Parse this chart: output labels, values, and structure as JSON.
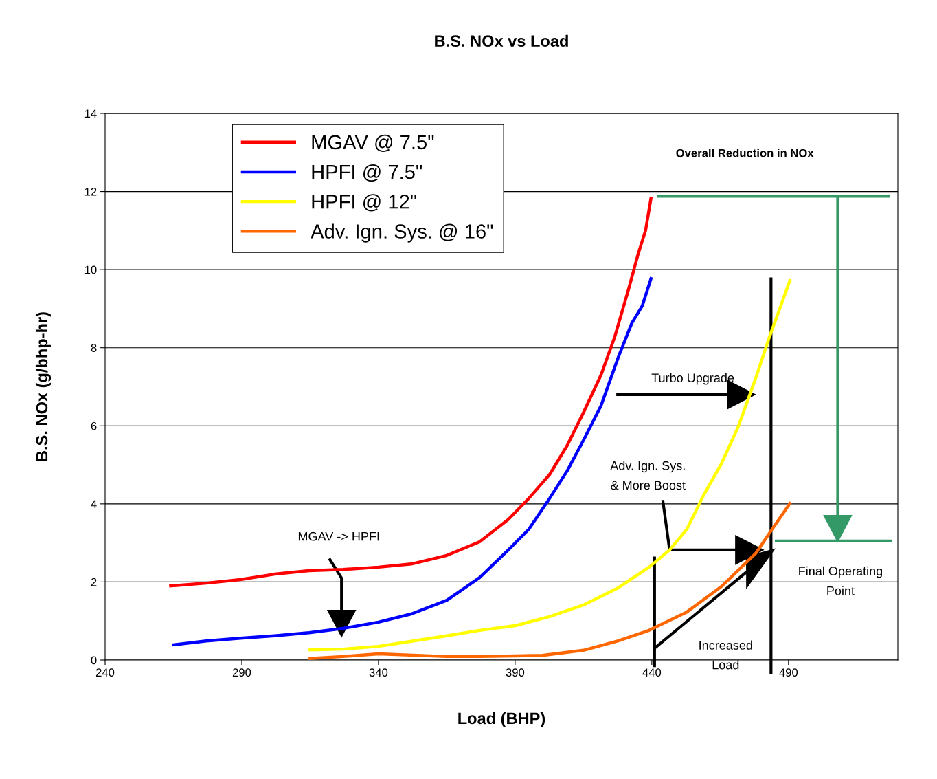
{
  "chart_data": {
    "type": "line",
    "title": "B.S. NOx vs Load",
    "xlabel": "Load (BHP)",
    "ylabel": "B.S. NOx (g/bhp-hr)",
    "xlim": [
      240,
      530
    ],
    "xticks": [
      240,
      290,
      340,
      390,
      440,
      490
    ],
    "ylim": [
      0,
      14
    ],
    "yticks": [
      0,
      2,
      4,
      6,
      8,
      10,
      12,
      14
    ],
    "grid": "y",
    "legend": "top left",
    "marker": "none",
    "line_style": "solid",
    "series": [
      {
        "name": "MGAV @ 7.5\"",
        "color": "#ff0000",
        "x": [
          264,
          277,
          289.5,
          302,
          314.6,
          327,
          340,
          352,
          365,
          377,
          387.5,
          395,
          402.6,
          409,
          415,
          421.4,
          426.4,
          431.5,
          435,
          437.7,
          439.7
        ],
        "values": [
          1.9,
          1.97,
          2.06,
          2.2,
          2.29,
          2.32,
          2.38,
          2.46,
          2.68,
          3.03,
          3.6,
          4.14,
          4.75,
          5.49,
          6.34,
          7.3,
          8.27,
          9.5,
          10.4,
          11.0,
          11.83
        ]
      },
      {
        "name": "HPFI @ 7.5\"",
        "color": "#0000ff",
        "x": [
          265,
          277,
          289.5,
          302,
          314.6,
          327,
          340,
          352,
          365,
          377,
          387.5,
          395,
          402.6,
          409,
          415,
          421.4,
          427.7,
          432.7,
          436.5,
          439.7
        ],
        "values": [
          0.39,
          0.49,
          0.56,
          0.62,
          0.7,
          0.81,
          0.97,
          1.18,
          1.53,
          2.11,
          2.82,
          3.35,
          4.14,
          4.84,
          5.63,
          6.51,
          7.75,
          8.63,
          9.07,
          9.77
        ]
      },
      {
        "name": "HPFI @ 12\"",
        "color": "#ffff00",
        "x": [
          315,
          327,
          340,
          352,
          365,
          377,
          390,
          402.6,
          415,
          427.7,
          439,
          446.5,
          452.8,
          459,
          465.4,
          471.7,
          478,
          483,
          486.7,
          490.5
        ],
        "values": [
          0.26,
          0.28,
          0.35,
          0.48,
          0.62,
          0.76,
          0.88,
          1.11,
          1.41,
          1.85,
          2.38,
          2.82,
          3.35,
          4.23,
          5.02,
          5.99,
          7.22,
          8.27,
          8.98,
          9.72
        ]
      },
      {
        "name": "Adv. Ign. Sys. @ 16\"",
        "color": "#ff6600",
        "x": [
          315,
          327,
          340,
          365,
          377,
          400,
          415,
          427.7,
          439,
          452.8,
          465.4,
          478,
          484,
          490.5
        ],
        "values": [
          0.04,
          0.09,
          0.16,
          0.09,
          0.09,
          0.12,
          0.25,
          0.49,
          0.76,
          1.23,
          1.88,
          2.73,
          3.35,
          4.01
        ]
      }
    ],
    "ref_lines": [
      {
        "axis": "x",
        "value": 441,
        "color": "#000000"
      },
      {
        "axis": "x",
        "value": 483.6,
        "color": "#000000"
      }
    ],
    "annotations": [
      "Overall Reduction in NOx",
      "Turbo Upgrade",
      {
        "text": "Adv. Ign. Sys.\n& More Boost",
        "x": 446.5,
        "y": 2.82
      },
      "MGAV -> HPFI",
      "Final Operating\nPoint",
      "Increased\nLoad"
    ]
  }
}
